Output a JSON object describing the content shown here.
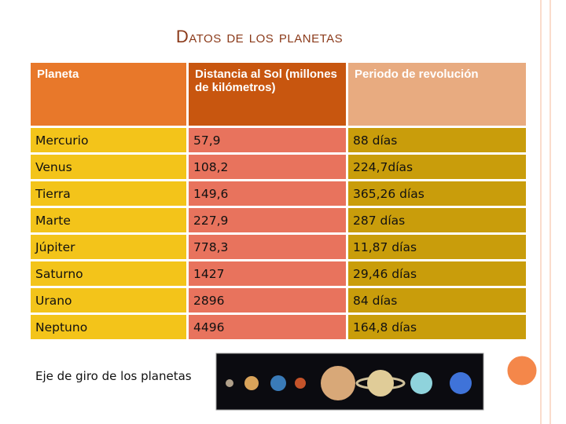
{
  "header": {
    "title": "Datos de los planetas"
  },
  "table": {
    "columns": [
      "Planeta",
      "Distancia al Sol (millones de kilómetros)",
      "Periodo de revolución"
    ],
    "rows": [
      [
        "Mercurio",
        "57,9",
        "88 días"
      ],
      [
        "Venus",
        "108,2",
        "224,7días"
      ],
      [
        "Tierra",
        "149,6",
        "365,26 días"
      ],
      [
        "Marte",
        "227,9",
        "287 días"
      ],
      [
        "Júpiter",
        "778,3",
        "11,87 días"
      ],
      [
        "Saturno",
        "1427",
        "29,46 días"
      ],
      [
        "Urano",
        "2896",
        "84 días"
      ],
      [
        "Neptuno",
        "4496",
        "164,8 días"
      ]
    ]
  },
  "caption": "Eje de giro de los planetas"
}
